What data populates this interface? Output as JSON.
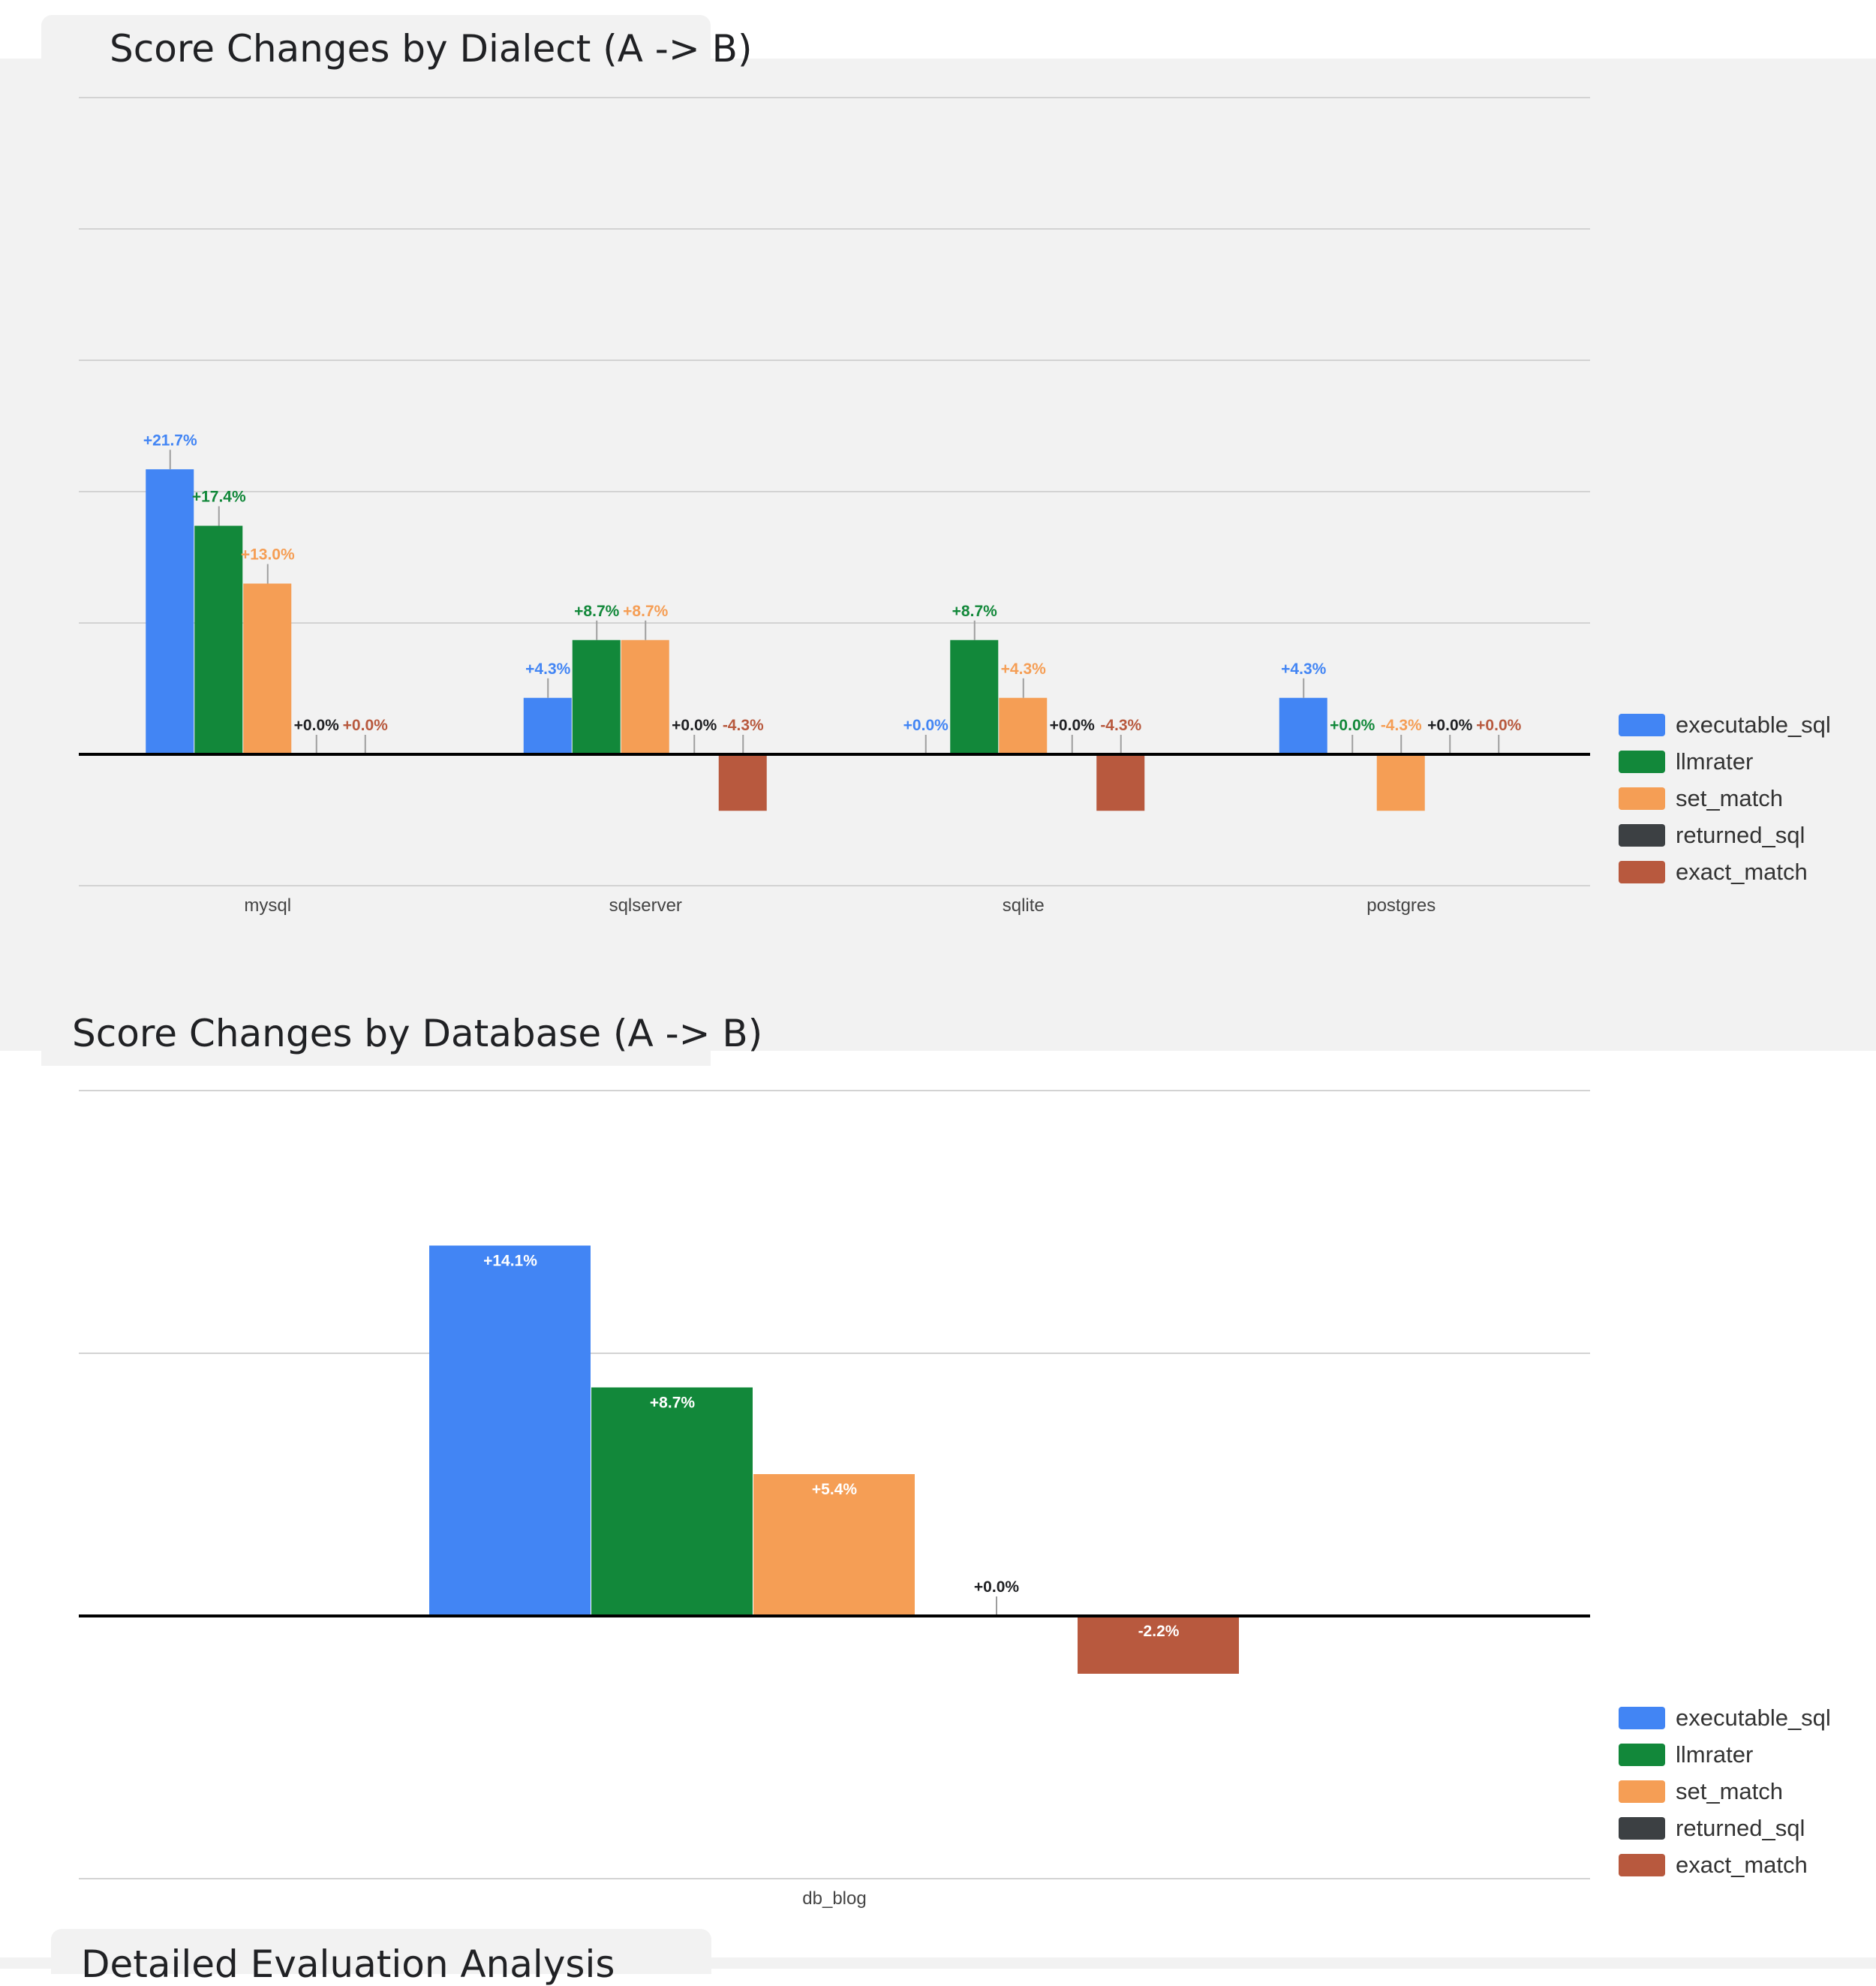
{
  "sections": [
    {
      "title": "Score Changes by Dialect (A -> B)"
    },
    {
      "title": "Score Changes by Database (A -> B)"
    },
    {
      "title": "Detailed Evaluation Analysis"
    }
  ],
  "colors": {
    "executable_sql": "#4285f4",
    "llmrater": "#12883a",
    "set_match": "#f59e55",
    "returned_sql": "#3c4043",
    "exact_match": "#b8593e"
  },
  "chart_data": [
    {
      "type": "bar",
      "title": "Score Changes by Dialect (A -> B)",
      "categories": [
        "mysql",
        "sqlserver",
        "sqlite",
        "postgres"
      ],
      "series": [
        {
          "name": "executable_sql",
          "values": [
            21.7,
            4.3,
            0.0,
            4.3
          ],
          "labels": [
            "+21.7%",
            "+4.3%",
            "+0.0%",
            "+4.3%"
          ]
        },
        {
          "name": "llmrater",
          "values": [
            17.4,
            8.7,
            8.7,
            0.0
          ],
          "labels": [
            "+17.4%",
            "+8.7%",
            "+8.7%",
            "+0.0%"
          ]
        },
        {
          "name": "set_match",
          "values": [
            13.0,
            8.7,
            4.3,
            -4.3
          ],
          "labels": [
            "+13.0%",
            "+8.7%",
            "+4.3%",
            "-4.3%"
          ]
        },
        {
          "name": "returned_sql",
          "values": [
            0.0,
            0.0,
            0.0,
            0.0
          ],
          "labels": [
            "+0.0%",
            "+0.0%",
            "+0.0%",
            "+0.0%"
          ]
        },
        {
          "name": "exact_match",
          "values": [
            0.0,
            -4.3,
            -4.3,
            0.0
          ],
          "labels": [
            "+0.0%",
            "-4.3%",
            "-4.3%",
            "+0.0%"
          ]
        }
      ],
      "ylim": [
        -10,
        50
      ],
      "grid": true,
      "legend": "right"
    },
    {
      "type": "bar",
      "title": "Score Changes by Database (A -> B)",
      "categories": [
        "db_blog"
      ],
      "series": [
        {
          "name": "executable_sql",
          "values": [
            14.1
          ],
          "labels": [
            "+14.1%"
          ]
        },
        {
          "name": "llmrater",
          "values": [
            8.7
          ],
          "labels": [
            "+8.7%"
          ]
        },
        {
          "name": "set_match",
          "values": [
            5.4
          ],
          "labels": [
            "+5.4%"
          ]
        },
        {
          "name": "returned_sql",
          "values": [
            0.0
          ],
          "labels": [
            "+0.0%"
          ]
        },
        {
          "name": "exact_match",
          "values": [
            -2.2
          ],
          "labels": [
            "-2.2%"
          ]
        }
      ],
      "ylim": [
        -10,
        20
      ],
      "grid": true,
      "legend": "right"
    }
  ]
}
